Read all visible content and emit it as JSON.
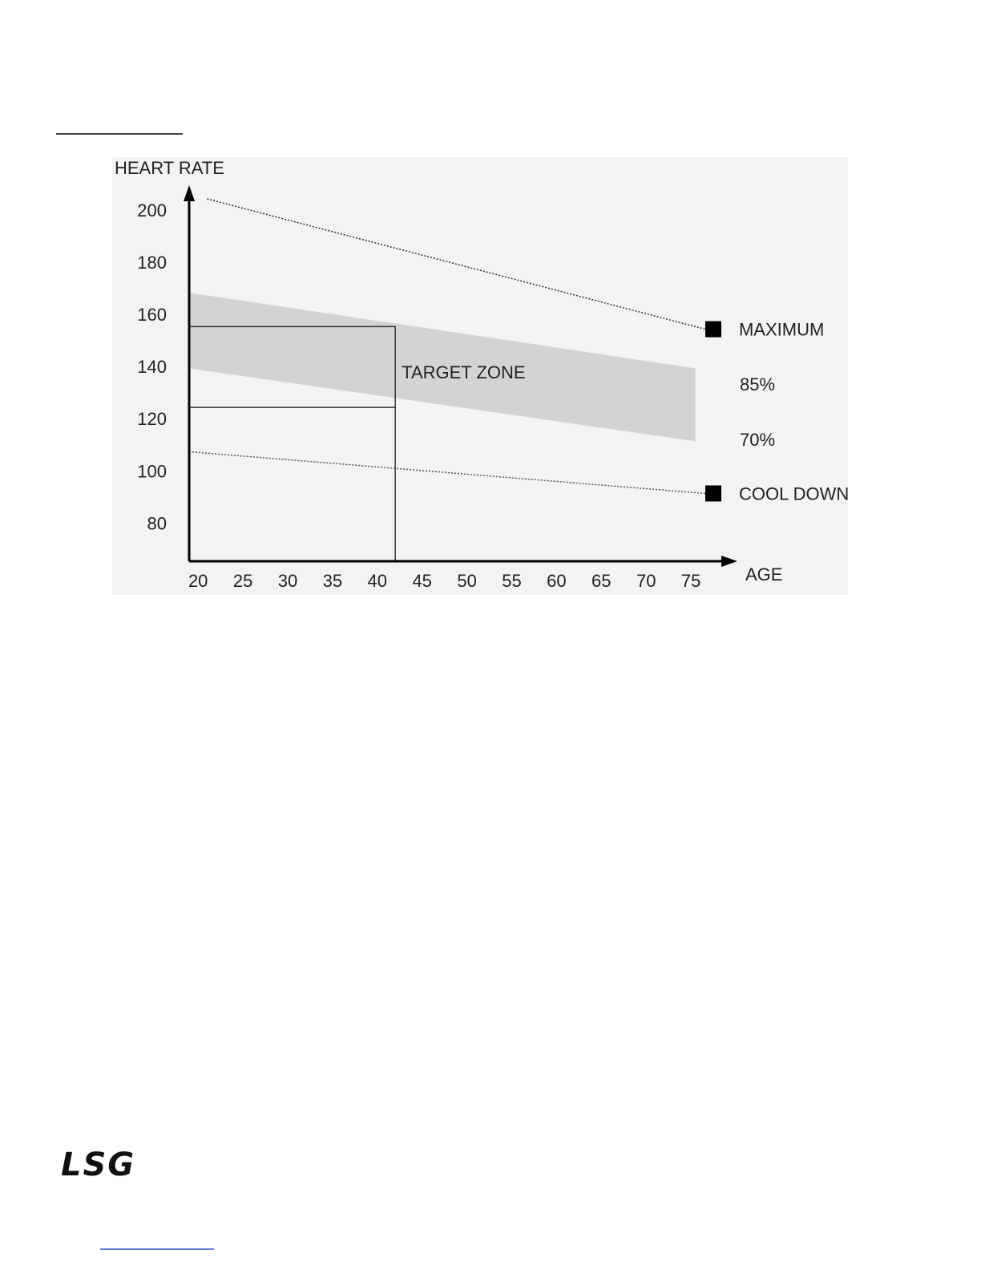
{
  "chart_data": {
    "type": "line",
    "y_label": "HEART RATE",
    "x_label": "AGE",
    "xlim": [
      19,
      80
    ],
    "ylim": [
      66,
      209
    ],
    "xticks": [
      20,
      25,
      30,
      35,
      40,
      45,
      50,
      55,
      60,
      65,
      70,
      75
    ],
    "yticks": [
      80,
      100,
      120,
      140,
      160,
      180,
      200
    ],
    "series": [
      {
        "name": "MAXIMUM",
        "color": "#333333",
        "x": [
          21,
          76.6
        ],
        "values": [
          205,
          155
        ]
      },
      {
        "name": "COOL DOWN",
        "color": "#555555",
        "x": [
          19,
          76.6
        ],
        "values": [
          108,
          92
        ]
      }
    ],
    "band": {
      "color": "#d3d3d3",
      "x": [
        19,
        75.5
      ],
      "upper": [
        169,
        140
      ],
      "lower": [
        140,
        112
      ],
      "upper_name": "85%",
      "lower_name": "70%"
    },
    "target_zone": {
      "label": "TARGET ZONE",
      "age": 42,
      "upper": 156,
      "lower": 125
    }
  },
  "footer": {
    "logo": "LSG"
  }
}
